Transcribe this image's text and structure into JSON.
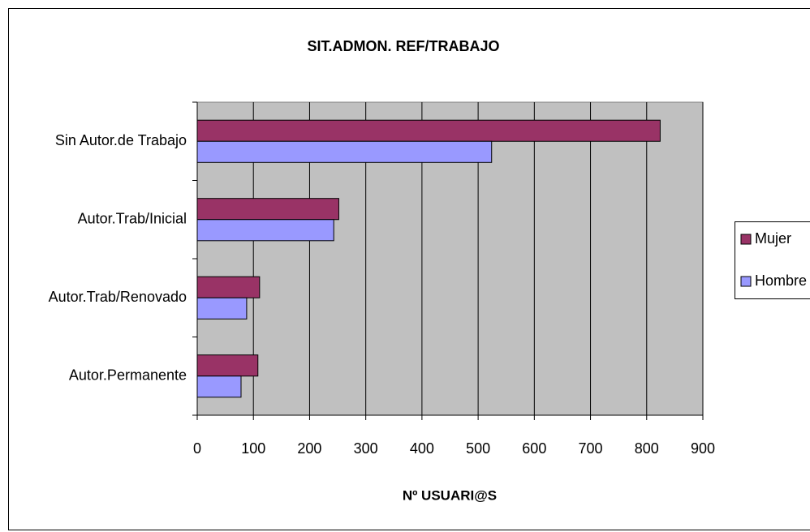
{
  "chart_data": {
    "type": "barh",
    "title": "SIT.ADMON. REF/TRABAJO",
    "x_label": "Nº USUARI@S",
    "categories": [
      "Sin Autor.de Trabajo",
      "Autor.Trab/Inicial",
      "Autor.Trab/Renovado",
      "Autor.Permanente"
    ],
    "series": [
      {
        "name": "Mujer",
        "color": "#993366",
        "values": [
          824,
          252,
          111,
          108
        ]
      },
      {
        "name": "Hombre",
        "color": "#9999ff",
        "values": [
          524,
          243,
          88,
          78
        ]
      }
    ],
    "xlim": [
      0,
      900
    ],
    "xticks": [
      0,
      100,
      200,
      300,
      400,
      500,
      600,
      700,
      800,
      900
    ],
    "grid": true,
    "legend": "right"
  }
}
